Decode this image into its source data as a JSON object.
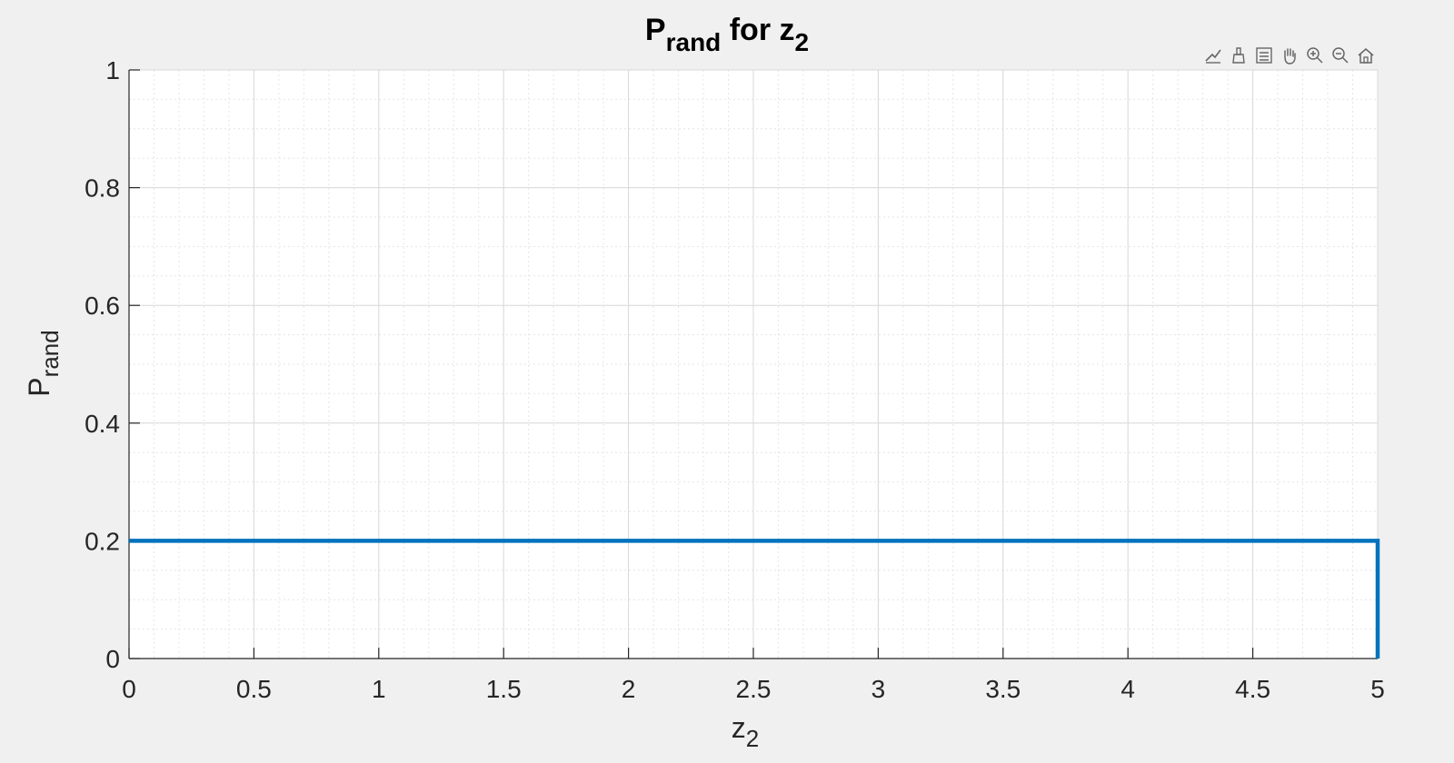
{
  "chart_data": {
    "type": "line",
    "title": "P",
    "title_sub": "rand",
    "title_mid": " for z",
    "title_sub2": "2",
    "xlabel": "z",
    "xlabel_sub": "2",
    "ylabel": "P",
    "ylabel_sub": "rand",
    "xlim": [
      0,
      5
    ],
    "ylim": [
      0,
      1
    ],
    "xticks": [
      0,
      0.5,
      1,
      1.5,
      2,
      2.5,
      3,
      3.5,
      4,
      4.5,
      5
    ],
    "xtick_labels": [
      "0",
      "0.5",
      "1",
      "1.5",
      "2",
      "2.5",
      "3",
      "3.5",
      "4",
      "4.5",
      "5"
    ],
    "yticks": [
      0,
      0.2,
      0.4,
      0.6,
      0.8,
      1
    ],
    "ytick_labels": [
      "0",
      "0.2",
      "0.4",
      "0.6",
      "0.8",
      "1"
    ],
    "grid": true,
    "minor_grid": true,
    "series": [
      {
        "color": "#0072BD",
        "x": [
          0,
          5,
          5
        ],
        "y": [
          0.2,
          0.2,
          0
        ]
      }
    ]
  },
  "toolbar": {
    "icons": [
      "data-tips-icon",
      "brush-icon",
      "legend-icon",
      "pan-icon",
      "zoom-in-icon",
      "zoom-out-icon",
      "home-icon"
    ]
  }
}
